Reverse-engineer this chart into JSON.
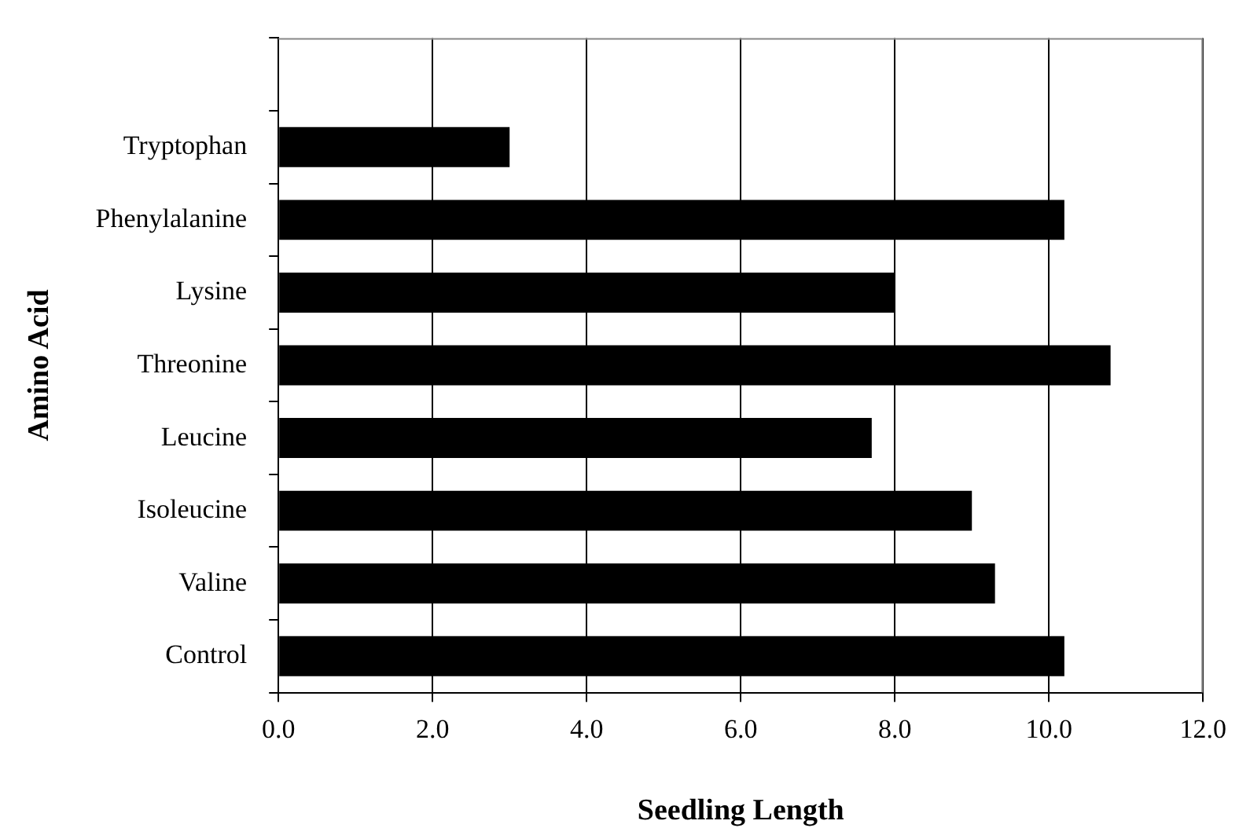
{
  "chart_data": {
    "type": "bar",
    "orientation": "horizontal",
    "xlabel": "Seedling Length",
    "ylabel": "Amino Acid",
    "categories": [
      null,
      "Tryptophan",
      "Phenylalanine",
      "Lysine",
      "Threonine",
      "Leucine",
      "Isoleucine",
      "Valine",
      "Control"
    ],
    "values": [
      null,
      3.0,
      10.2,
      8.0,
      10.8,
      7.7,
      9.0,
      9.3,
      10.2
    ],
    "color": "#000000",
    "xlim": [
      0,
      12
    ],
    "xticks": [
      {
        "value": 0,
        "label": "0.0"
      },
      {
        "value": 2,
        "label": "2.0"
      },
      {
        "value": 4,
        "label": "4.0"
      },
      {
        "value": 6,
        "label": "6.0"
      },
      {
        "value": 8,
        "label": "8.0"
      },
      {
        "value": 10,
        "label": "10.0"
      },
      {
        "value": 12,
        "label": "12.0"
      }
    ],
    "grid": "x",
    "legend": false
  }
}
